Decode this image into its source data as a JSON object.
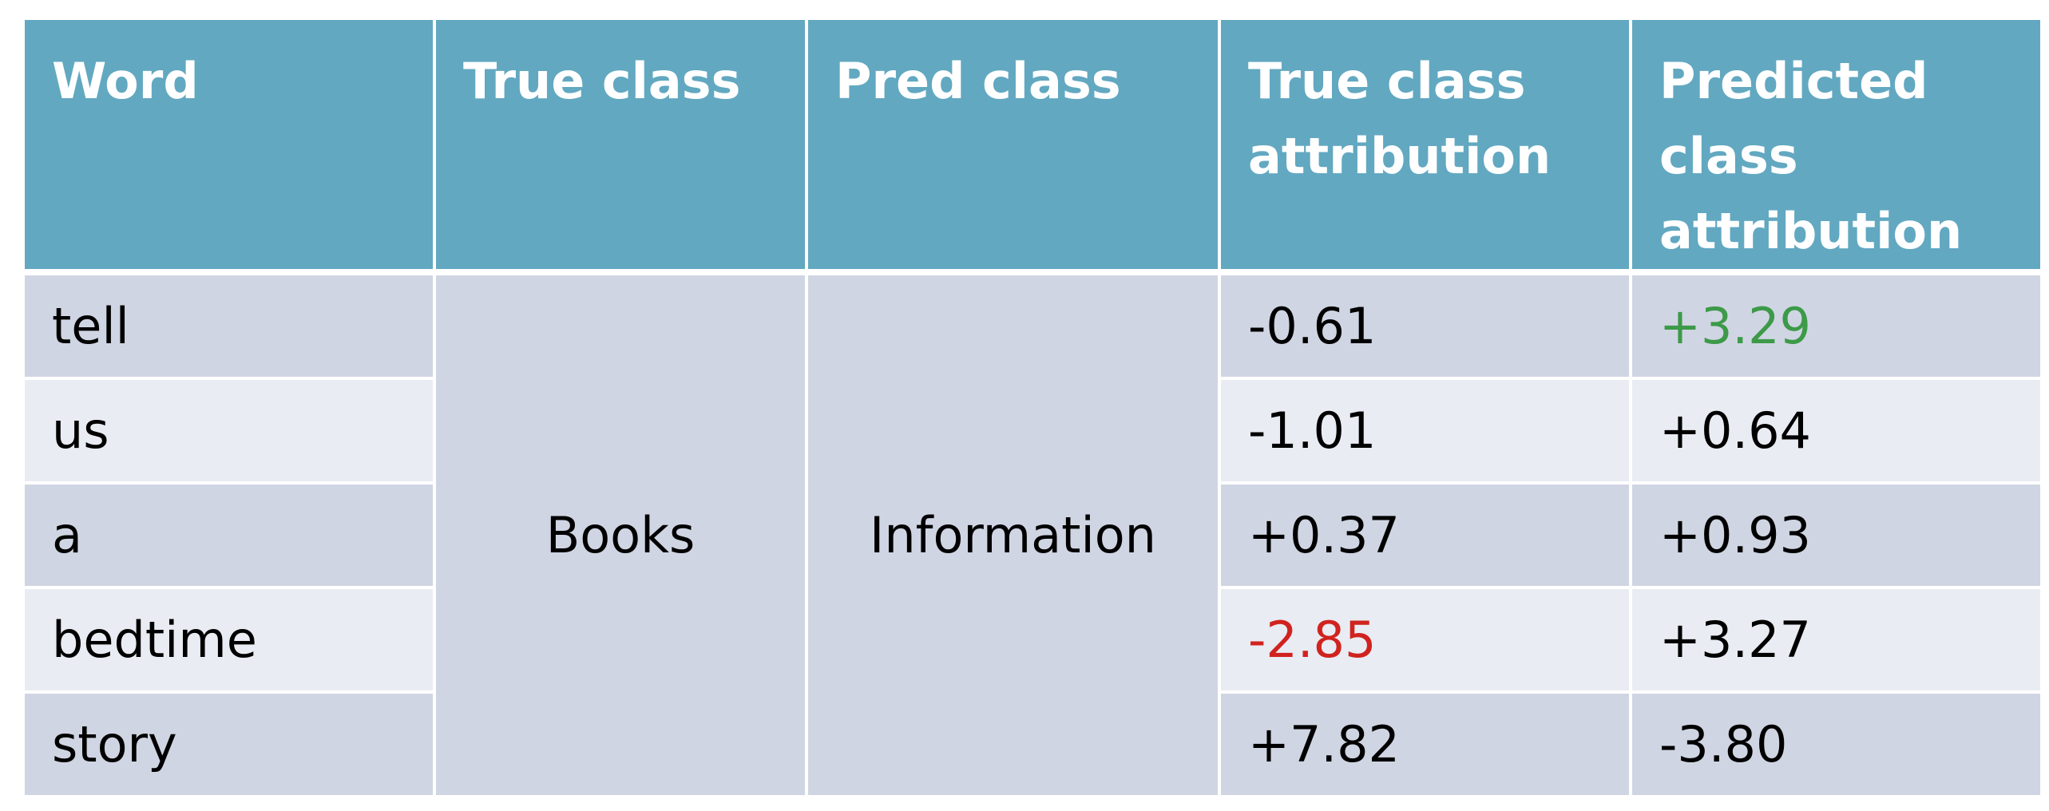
{
  "table": {
    "header": [
      "Word",
      "True class",
      "Pred class",
      "True class attribution",
      "Predicted class attribution"
    ],
    "true_class": "Books",
    "pred_class": "Information",
    "rows": [
      [
        "tell",
        "-0.61",
        "+3.29"
      ],
      [
        "us",
        "-1.01",
        "+0.64"
      ],
      [
        "a",
        "+0.37",
        "+0.93"
      ],
      [
        "bedtime",
        "-2.85",
        "+3.27"
      ],
      [
        "story",
        "+7.82",
        "-3.80"
      ]
    ]
  }
}
